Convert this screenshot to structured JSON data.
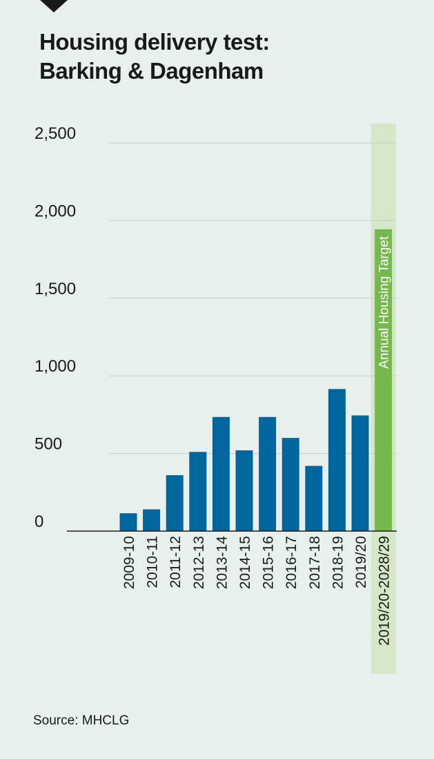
{
  "title_lines": [
    "Housing delivery test:",
    "Barking & Dagenham"
  ],
  "source": "Source: MHCLG",
  "colors": {
    "bar": "#00669d",
    "target_bar": "#75b84c",
    "target_band": "#d4e7c6",
    "background": "#e8f0ed",
    "grid": "#c8cfcc",
    "axis": "#1a1a1a",
    "text": "#1a1a1a"
  },
  "chart_data": {
    "type": "bar",
    "title": "Housing delivery test: Barking & Dagenham",
    "xlabel": "",
    "ylabel": "",
    "ylim": [
      0,
      2500
    ],
    "yticks": [
      0,
      500,
      1000,
      1500,
      2000,
      2500
    ],
    "ytick_labels": [
      "0",
      "500",
      "1,000",
      "1,500",
      "2,000",
      "2,500"
    ],
    "grid": true,
    "categories": [
      "2009-10",
      "2010-11",
      "2011-12",
      "2012-13",
      "2013-14",
      "2014-15",
      "2015-16",
      "2016-17",
      "2017-18",
      "2018-19",
      "2019/20",
      "2019/20-2028/29"
    ],
    "values": [
      115,
      140,
      360,
      510,
      735,
      520,
      735,
      600,
      420,
      915,
      745,
      1944
    ],
    "target_category": "2019/20-2028/29",
    "target_label": "Annual Housing Target"
  }
}
